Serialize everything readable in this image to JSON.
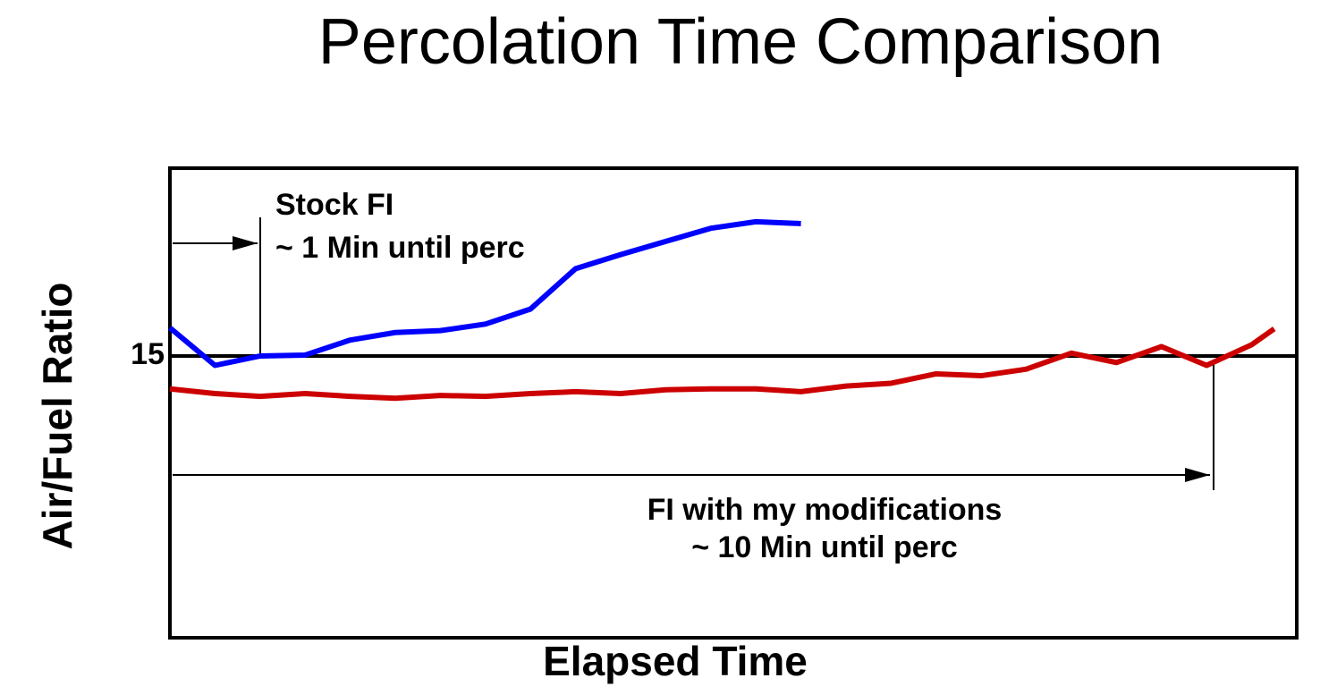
{
  "chart_data": {
    "type": "line",
    "title": "Percolation Time Comparison",
    "x_label": "Elapsed Time",
    "y_label": "Air/Fuel Ratio",
    "x": [
      0,
      4,
      8,
      12,
      16,
      20,
      24,
      28,
      32,
      36,
      40,
      44,
      48,
      52,
      56,
      60,
      64,
      68,
      72,
      76,
      80,
      84,
      88,
      92,
      96,
      98
    ],
    "xlim": [
      0,
      100
    ],
    "ylim": [
      12,
      17
    ],
    "yticks": [
      15
    ],
    "grid": true,
    "series": [
      {
        "name": "Stock FI",
        "color": "#0000ff",
        "values": [
          15.3,
          14.9,
          15.0,
          15.01,
          15.17,
          15.25,
          15.27,
          15.34,
          15.5,
          15.93,
          16.08,
          16.22,
          16.36,
          16.43,
          16.41,
          null,
          null,
          null,
          null,
          null,
          null,
          null,
          null,
          null,
          null,
          null
        ]
      },
      {
        "name": "FI with my modifications",
        "color": "#cc0000",
        "values": [
          14.65,
          14.6,
          14.57,
          14.6,
          14.57,
          14.55,
          14.58,
          14.57,
          14.6,
          14.62,
          14.6,
          14.64,
          14.65,
          14.65,
          14.62,
          14.68,
          14.71,
          14.81,
          14.79,
          14.86,
          15.03,
          14.93,
          15.1,
          14.9,
          15.12,
          15.29
        ]
      }
    ],
    "annotations": [
      "~ 1 Min until perc",
      "~ 10 Min until perc"
    ]
  }
}
